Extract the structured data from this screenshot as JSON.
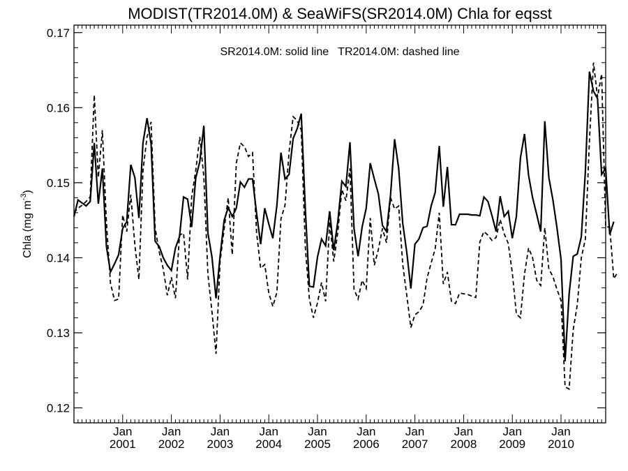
{
  "chart_data": {
    "type": "line",
    "title": "MODIST(TR2014.0M) & SeaWiFS(SR2014.0M)  Chla for eqsst",
    "annotation": "SR2014.0M: solid line   TR2014.0M: dashed line",
    "ylabel_main": "Chla (mg m",
    "ylabel_sup": "-3",
    "ylabel_close": ")",
    "ylim": [
      0.118,
      0.171
    ],
    "xlim": [
      "2000-01",
      "2010-12"
    ],
    "yticks": [
      "0.12",
      "0.13",
      "0.14",
      "0.15",
      "0.16",
      "0.17"
    ],
    "xticks": [
      {
        "month": "Jan",
        "year": "2001"
      },
      {
        "month": "Jan",
        "year": "2002"
      },
      {
        "month": "Jan",
        "year": "2003"
      },
      {
        "month": "Jan",
        "year": "2004"
      },
      {
        "month": "Jan",
        "year": "2005"
      },
      {
        "month": "Jan",
        "year": "2006"
      },
      {
        "month": "Jan",
        "year": "2007"
      },
      {
        "month": "Jan",
        "year": "2008"
      },
      {
        "month": "Jan",
        "year": "2009"
      },
      {
        "month": "Jan",
        "year": "2010"
      }
    ],
    "series": [
      {
        "style": "solid",
        "start": "2000-01",
        "values": [
          0.1455,
          0.1477,
          0.1473,
          0.1469,
          0.1475,
          0.1553,
          0.1472,
          0.1519,
          0.1415,
          0.1381,
          0.1392,
          0.1404,
          0.1439,
          0.1448,
          0.1524,
          0.1507,
          0.1453,
          0.1553,
          0.1586,
          0.1552,
          0.1422,
          0.1415,
          0.14,
          0.139,
          0.1383,
          0.1413,
          0.1428,
          0.1481,
          0.1478,
          0.1441,
          0.1506,
          0.1528,
          0.1576,
          0.1433,
          0.1401,
          0.1346,
          0.1402,
          0.145,
          0.1467,
          0.1455,
          0.1466,
          0.1501,
          0.1494,
          0.1505,
          0.1505,
          0.1459,
          0.1418,
          0.1466,
          0.1445,
          0.1426,
          0.147,
          0.154,
          0.1505,
          0.1511,
          0.1559,
          0.1572,
          0.1592,
          0.1465,
          0.1362,
          0.1361,
          0.1401,
          0.1425,
          0.1416,
          0.1462,
          0.141,
          0.1448,
          0.1502,
          0.1495,
          0.1554,
          0.1439,
          0.1402,
          0.1441,
          0.1466,
          0.1526,
          0.1505,
          0.1485,
          0.1443,
          0.1435,
          0.1484,
          0.1558,
          0.1519,
          0.1446,
          0.1407,
          0.1359,
          0.1418,
          0.1425,
          0.144,
          0.1442,
          0.1469,
          0.1487,
          0.1549,
          0.1468,
          0.1521,
          0.1444,
          0.1444,
          0.1458,
          0.1458,
          0.1458,
          0.1457,
          0.1457,
          0.1456,
          0.1481,
          0.1475,
          0.1456,
          0.1435,
          0.1482,
          0.1455,
          0.1462,
          0.1426,
          0.1455,
          0.1533,
          0.1565,
          0.151,
          0.148,
          0.1458,
          0.1435,
          0.1582,
          0.1507,
          0.1477,
          0.144,
          0.1398,
          0.1262,
          0.1352,
          0.1402,
          0.1405,
          0.1428,
          0.1515,
          0.1648,
          0.1622,
          0.1612,
          0.1511,
          0.1519,
          0.1431,
          0.1448
        ]
      },
      {
        "style": "dashed",
        "start": "2000-01",
        "values": [
          0.146,
          0.1466,
          0.147,
          0.1475,
          0.1481,
          0.1617,
          0.1507,
          0.157,
          0.1447,
          0.1366,
          0.1343,
          0.1345,
          0.1457,
          0.1435,
          0.1484,
          0.1417,
          0.1371,
          0.1516,
          0.1561,
          0.1581,
          0.144,
          0.1408,
          0.1385,
          0.135,
          0.1374,
          0.1346,
          0.143,
          0.1433,
          0.1371,
          0.1481,
          0.1516,
          0.1561,
          0.1508,
          0.1378,
          0.1328,
          0.1272,
          0.1395,
          0.1438,
          0.148,
          0.1404,
          0.1526,
          0.1553,
          0.1548,
          0.1535,
          0.154,
          0.1433,
          0.1386,
          0.1391,
          0.1353,
          0.1335,
          0.1354,
          0.1452,
          0.147,
          0.1541,
          0.1588,
          0.1583,
          0.157,
          0.1414,
          0.1345,
          0.132,
          0.134,
          0.1367,
          0.1342,
          0.1448,
          0.1395,
          0.1434,
          0.1491,
          0.1476,
          0.1519,
          0.1358,
          0.1345,
          0.137,
          0.1359,
          0.1453,
          0.139,
          0.1411,
          0.1439,
          0.142,
          0.148,
          0.1465,
          0.1469,
          0.1391,
          0.135,
          0.1307,
          0.1324,
          0.1328,
          0.1337,
          0.1373,
          0.1393,
          0.1412,
          0.146,
          0.1365,
          0.1381,
          0.1342,
          0.1339,
          0.1353,
          0.1352,
          0.1351,
          0.1349,
          0.1347,
          0.1421,
          0.1435,
          0.143,
          0.1423,
          0.1427,
          0.1451,
          0.1432,
          0.1419,
          0.138,
          0.1325,
          0.132,
          0.1378,
          0.1413,
          0.14,
          0.137,
          0.1363,
          0.144,
          0.1385,
          0.1375,
          0.1358,
          0.1343,
          0.1228,
          0.1225,
          0.1304,
          0.1337,
          0.14,
          0.1425,
          0.1556,
          0.166,
          0.1614,
          0.1645,
          0.1441,
          0.1441,
          0.1372,
          0.1381
        ]
      }
    ],
    "grid": false,
    "legend": "none"
  }
}
